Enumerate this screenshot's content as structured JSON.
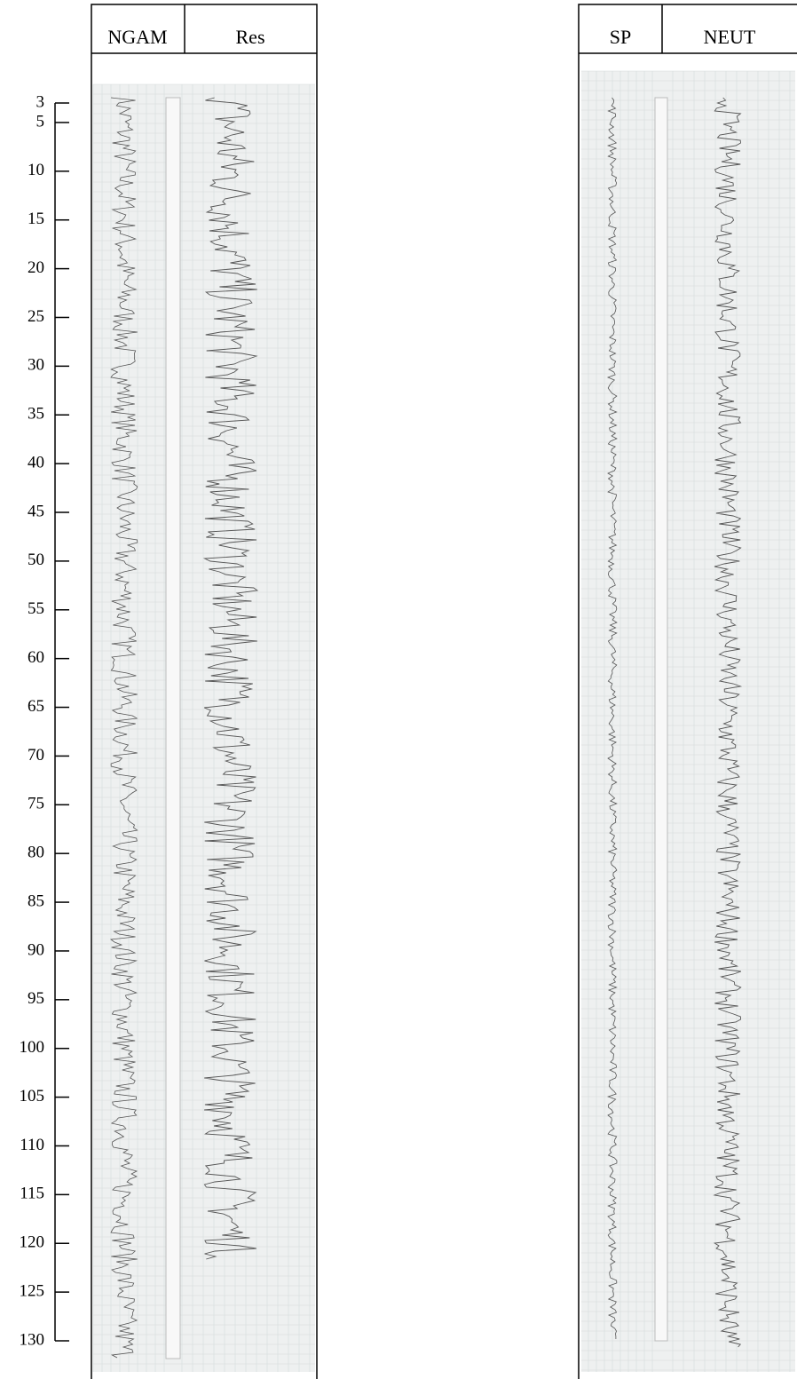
{
  "depth_axis": {
    "ylim": [
      3,
      130
    ],
    "ticks": [
      3,
      5,
      10,
      15,
      20,
      25,
      30,
      35,
      40,
      45,
      50,
      55,
      60,
      65,
      70,
      75,
      80,
      85,
      90,
      95,
      100,
      105,
      110,
      115,
      120,
      125,
      130
    ]
  },
  "panels": [
    {
      "tracks": [
        "NGAM",
        "Res"
      ]
    },
    {
      "tracks": [
        "SP",
        "NEUT"
      ]
    }
  ]
}
